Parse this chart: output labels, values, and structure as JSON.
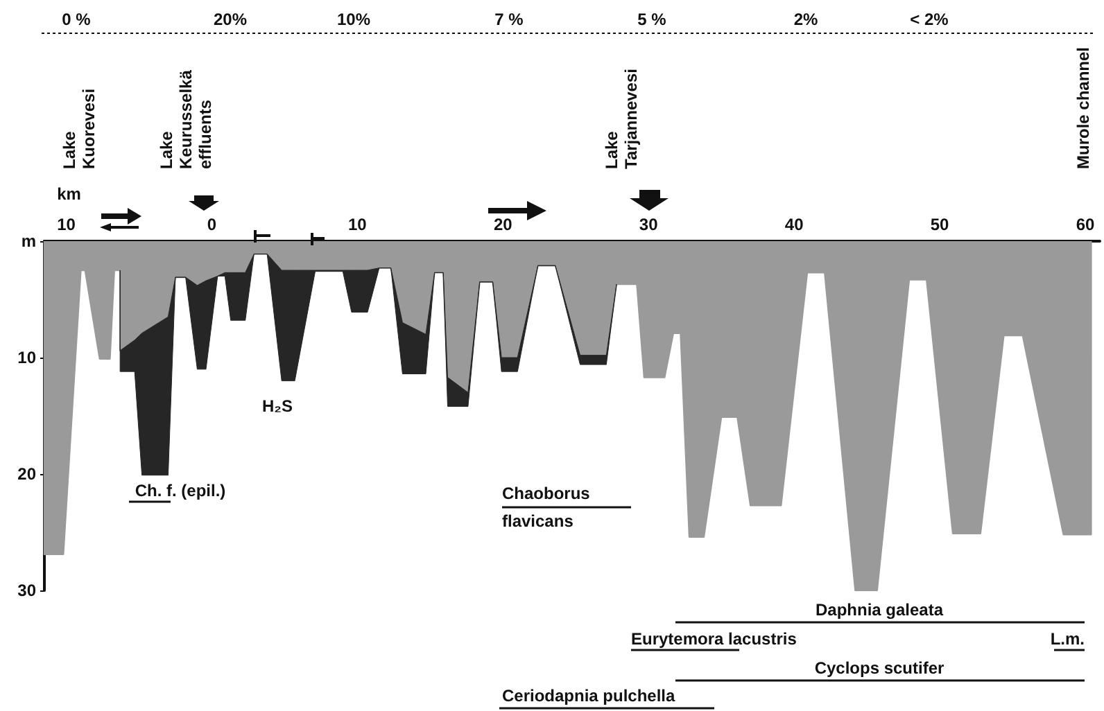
{
  "chart_data": {
    "type": "area",
    "xlabel": "km",
    "x": [
      -11.5,
      -11.5,
      -10.2,
      -9.0,
      -8.7,
      -7.7,
      -7.0,
      -6.7,
      -6.3,
      -6.3,
      -5.3,
      -4.8,
      -3.0,
      -2.5,
      -1.8,
      -1.0,
      -0.4,
      0.4,
      0.9,
      1.3,
      2.3,
      2.9,
      3.8,
      4.8,
      5.7,
      7.1,
      9.0,
      9.6,
      10.7,
      11.5,
      12.3,
      13.1,
      14.7,
      15.3,
      15.9,
      16.2,
      17.6,
      18.4,
      19.3,
      19.9,
      21.0,
      22.4,
      23.6,
      25.3,
      27.1,
      27.8,
      29.2,
      29.7,
      31.1,
      31.7,
      32.2,
      32.8,
      33.8,
      35.0,
      36.1,
      37.0,
      39.1,
      40.9,
      42.1,
      44.2,
      45.7,
      47.9,
      49.1,
      50.9,
      52.8,
      54.4,
      55.7,
      58.5,
      60.4,
      60.4
    ],
    "series": [
      {
        "color": "#9a9a9a",
        "values": [
          0,
          26.9,
          26.9,
          2.5,
          2.5,
          10.1,
          10.1,
          2.5,
          2.5,
          9.4,
          8.5,
          7.9,
          6.5,
          3.1,
          3.1,
          3.8,
          3.4,
          3,
          2.7,
          2.7,
          2.7,
          1.1,
          1.1,
          2.5,
          2.5,
          2.5,
          2.5,
          2.5,
          2.5,
          2.3,
          2.3,
          7,
          8,
          2.7,
          2.7,
          11.7,
          13,
          3.5,
          3.5,
          10,
          10,
          2.1,
          2.1,
          9.8,
          9.8,
          3.7,
          3.7,
          11.7,
          11.7,
          7.9,
          7.9,
          25.4,
          25.4,
          15.1,
          15.1,
          22.7,
          22.7,
          2.7,
          2.7,
          30,
          30,
          3.3,
          3.3,
          25.1,
          25.1,
          8.1,
          8.1,
          25.2,
          25.2,
          0
        ]
      },
      {
        "color": "#262626",
        "values": [
          null,
          null,
          null,
          null,
          null,
          null,
          null,
          null,
          0,
          1.8,
          2.7,
          12.2,
          13.6,
          0,
          0,
          7.2,
          7.6,
          0,
          0.3,
          4.1,
          4.1,
          0,
          0,
          9.5,
          9.5,
          0.1,
          0.1,
          3.6,
          3.6,
          0,
          0,
          4.4,
          3.4,
          0,
          0,
          2.5,
          1.2,
          0,
          0,
          1.2,
          1.2,
          0,
          0,
          0.8,
          0.8,
          0,
          null,
          null,
          null,
          null,
          null,
          null,
          null,
          null,
          null,
          null,
          null,
          null,
          null,
          null,
          null,
          null,
          null,
          null,
          null,
          null,
          null,
          null,
          null,
          null
        ]
      }
    ],
    "stacked": true,
    "xlim": [
      -11.5,
      61
    ],
    "xticks": [
      {
        "value": -10,
        "label": "10"
      },
      0,
      10,
      20,
      30,
      40,
      50,
      60
    ],
    "ylim": [
      30,
      0
    ],
    "yticks": [
      {
        "value": 0,
        "label": "m"
      },
      10,
      20,
      30
    ],
    "marker": "none",
    "annotations": [
      "0 %",
      "20%",
      "10%",
      "7 %",
      "5 %",
      "2%",
      "< 2%",
      "Lake\nKuorevesi",
      "Lake\nKeurusselkä\neffluents",
      "Lake\nTarjannevesi",
      "Murole channel",
      "H₂S",
      "Ch. f. (epil.)",
      "Chaoborus\nflavicans",
      "Daphnia galeata",
      "Eurytemora lacustris",
      "L.m.",
      "Cyclops scutifer",
      "Ceriodapnia pulchella"
    ]
  }
}
